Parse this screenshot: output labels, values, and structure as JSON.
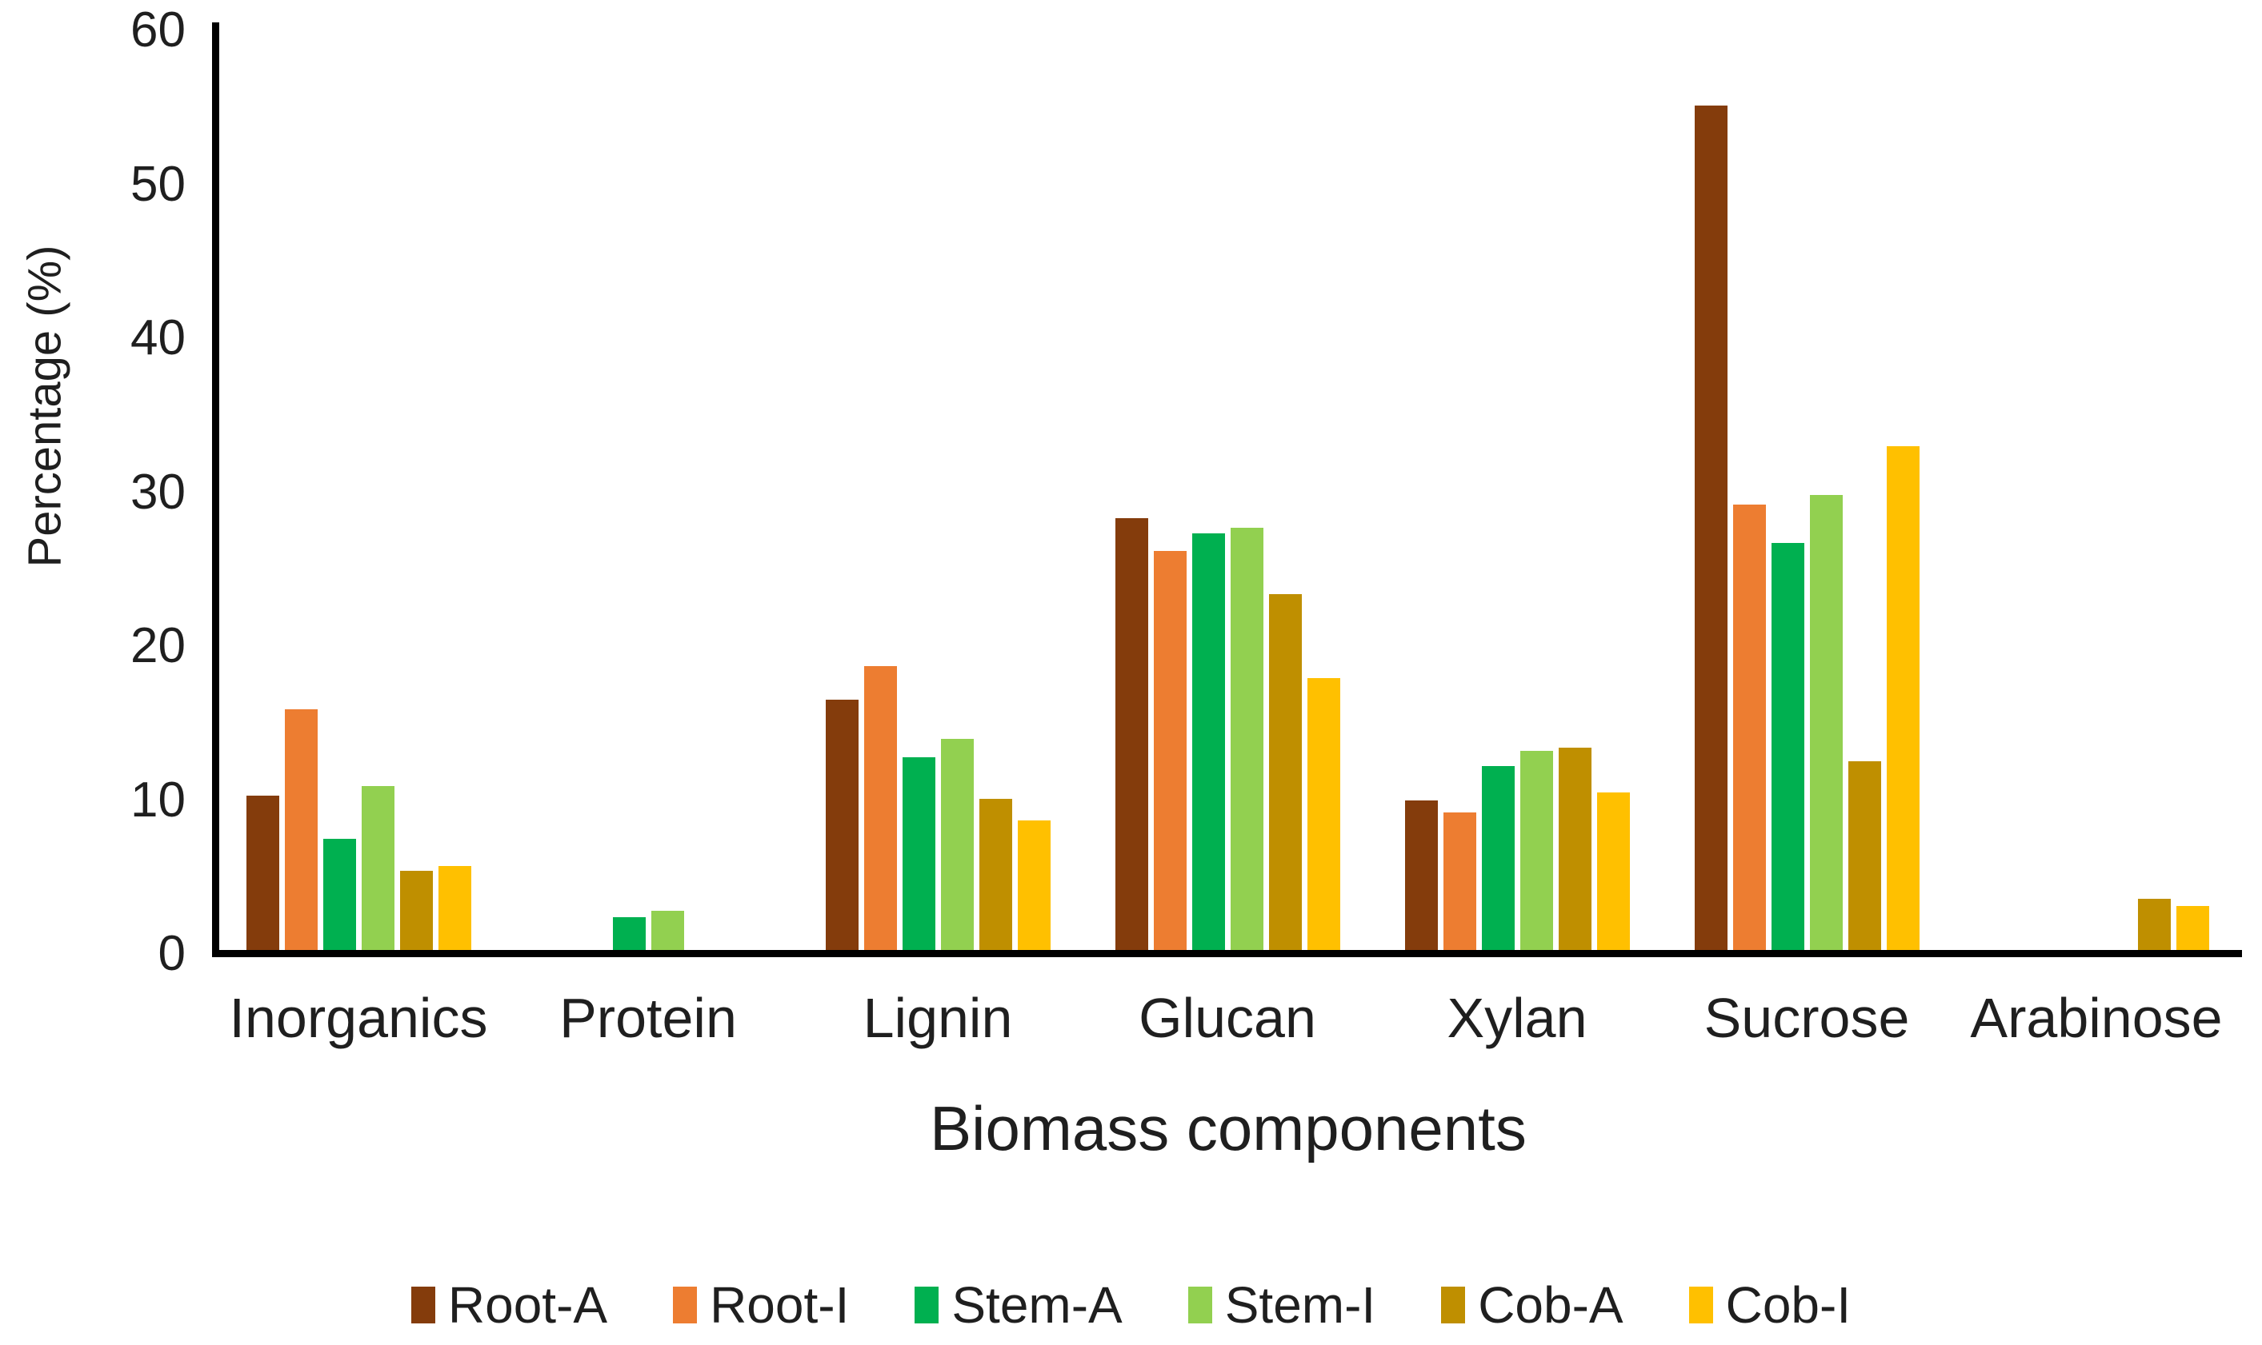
{
  "chart_data": {
    "type": "bar",
    "title": "",
    "xlabel": "Biomass components",
    "ylabel": "Percentage (%)",
    "categories": [
      "Inorganics",
      "Protein",
      "Lignin",
      "Glucan",
      "Xylan",
      "Sucrose",
      "Arabinose"
    ],
    "series": [
      {
        "name": "Root-A",
        "color": "#843C0C",
        "values": [
          10.3,
          0,
          16.5,
          28.3,
          10.0,
          55.1,
          0
        ]
      },
      {
        "name": "Root-I",
        "color": "#ED7D31",
        "values": [
          15.9,
          0,
          18.7,
          26.2,
          9.2,
          29.2,
          0
        ]
      },
      {
        "name": "Stem-A",
        "color": "#00B050",
        "values": [
          7.5,
          2.4,
          12.8,
          27.3,
          12.2,
          26.7,
          0
        ]
      },
      {
        "name": "Stem-I",
        "color": "#92D050",
        "values": [
          10.9,
          2.8,
          14.0,
          27.7,
          13.2,
          29.8,
          0
        ]
      },
      {
        "name": "Cob-A",
        "color": "#BF8F00",
        "values": [
          5.4,
          0,
          10.1,
          23.4,
          13.4,
          12.5,
          3.6
        ]
      },
      {
        "name": "Cob-I",
        "color": "#FFC000",
        "values": [
          5.7,
          0,
          8.7,
          17.9,
          10.5,
          33.0,
          3.1
        ]
      }
    ],
    "ylim": [
      0,
      60
    ],
    "yticks": [
      0,
      10,
      20,
      30,
      40,
      50,
      60
    ],
    "grid": false,
    "legend_position": "bottom",
    "axis_color": "#000000",
    "text_color": "#1f1f1f"
  }
}
